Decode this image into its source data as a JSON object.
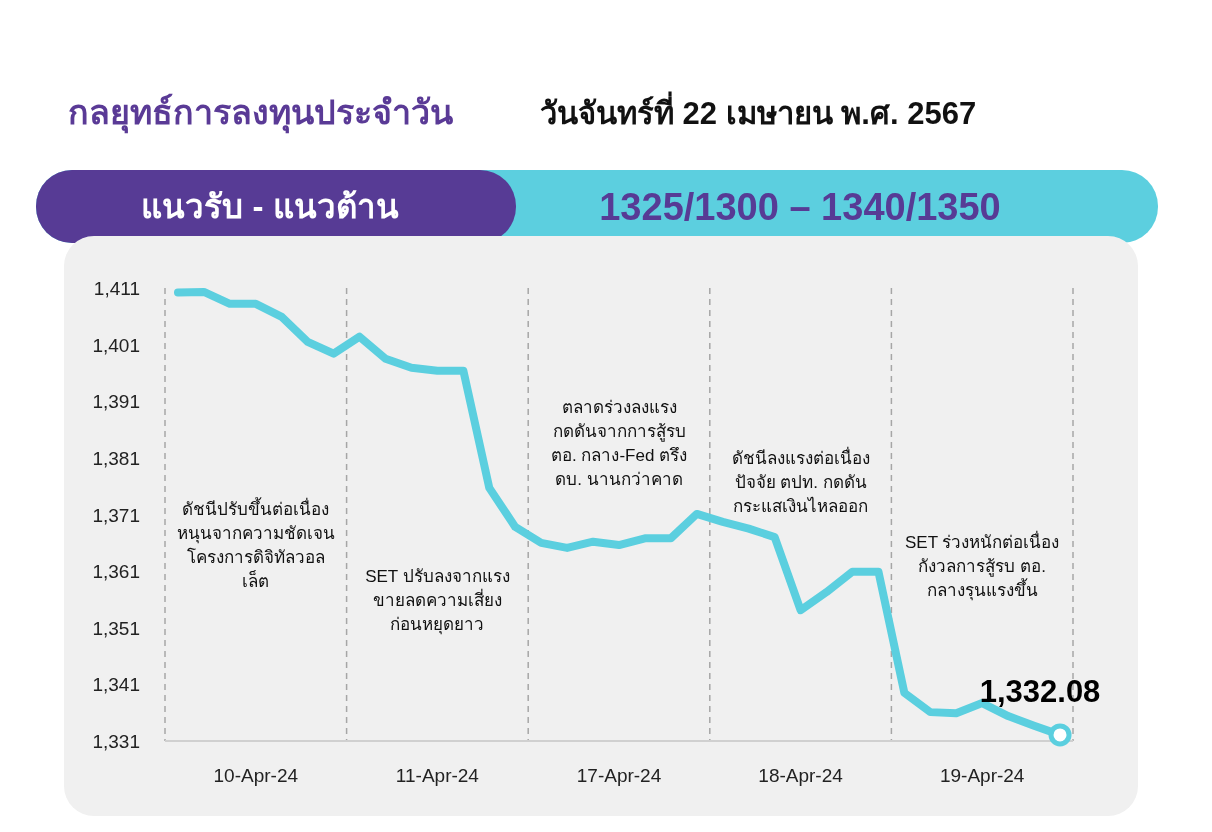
{
  "chart_data": {
    "type": "line",
    "title": "กลยุทธ์การลงทุนประจำวัน",
    "subtitle": "วันจันทร์ที่ 22 เมษายน พ.ศ. 2567",
    "annotations": [
      "แนวรับ - แนวต้าน",
      "1325/1300  – 1340/1350",
      "ดัชนีปรับขึ้นต่อเนื่อง\nหนุนจากความชัดเจน\nโครงการดิจิทัลวอล\nเล็ต",
      "SET ปรับลงจากแรง\nขายลดความเสี่ยง\nก่อนหยุดยาว",
      "ตลาดร่วงลงแรง\nกดดันจากการสู้รบ\nตอ. กลาง-Fed ตรึง\nดบ. นานกว่าคาด",
      "ดัชนีลงแรงต่อเนื่อง\nปัจจัย ตปท. กดดัน\nกระแสเงินไหลออก",
      "SET ร่วงหนักต่อเนื่อง\nกังวลการสู้รบ ตอ.\nกลางรุนแรงขึ้น"
    ],
    "categories": [
      null,
      null,
      null,
      "10-Apr-24",
      null,
      null,
      null,
      null,
      null,
      null,
      "11-Apr-24",
      null,
      null,
      null,
      null,
      null,
      null,
      "17-Apr-24",
      null,
      null,
      null,
      null,
      null,
      null,
      "18-Apr-24",
      null,
      null,
      null,
      null,
      null,
      null,
      "19-Apr-24",
      null,
      null,
      null
    ],
    "ylim": [
      1331,
      1411
    ],
    "yticks": [
      {
        "value": 1331,
        "label": "1,331"
      },
      {
        "value": 1341,
        "label": "1,341"
      },
      {
        "value": 1351,
        "label": "1,351"
      },
      {
        "value": 1361,
        "label": "1,361"
      },
      {
        "value": 1371,
        "label": "1,371"
      },
      {
        "value": 1381,
        "label": "1,381"
      },
      {
        "value": 1391,
        "label": "1,391"
      },
      {
        "value": 1401,
        "label": "1,401"
      },
      {
        "value": 1411,
        "label": "1,411"
      }
    ],
    "grid": false,
    "marker": "none",
    "line_style": "solid",
    "series": [
      {
        "type": "line",
        "color": "#5bcfdf",
        "values": [
          1410.2,
          1410.3,
          1408.2,
          1408.2,
          1405.9,
          1401.5,
          1399.4,
          1402.4,
          1398.5,
          1396.9,
          1396.4,
          1396.4,
          1375.7,
          1368.8,
          1366.0,
          1365.1,
          1366.2,
          1365.6,
          1366.8,
          1366.8,
          1371.1,
          1369.7,
          1368.5,
          1367.0,
          1354.1,
          1357.3,
          1360.9,
          1360.9,
          1339.5,
          1336.1,
          1335.9,
          1337.7,
          1335.4,
          1333.7,
          1332.08
        ]
      },
      {
        "type": "scatter",
        "color": "#5bcfdf",
        "marker": "circle",
        "values": [
          null,
          null,
          null,
          null,
          null,
          null,
          null,
          null,
          null,
          null,
          null,
          null,
          null,
          null,
          null,
          null,
          null,
          null,
          null,
          null,
          null,
          null,
          null,
          null,
          null,
          null,
          null,
          null,
          null,
          null,
          null,
          null,
          null,
          null,
          1332.08
        ],
        "value_labels": [
          null,
          null,
          null,
          null,
          null,
          null,
          null,
          null,
          null,
          null,
          null,
          null,
          null,
          null,
          null,
          null,
          null,
          null,
          null,
          null,
          null,
          null,
          null,
          null,
          null,
          null,
          null,
          null,
          null,
          null,
          null,
          null,
          null,
          null,
          "1,332.08"
        ]
      }
    ]
  }
}
